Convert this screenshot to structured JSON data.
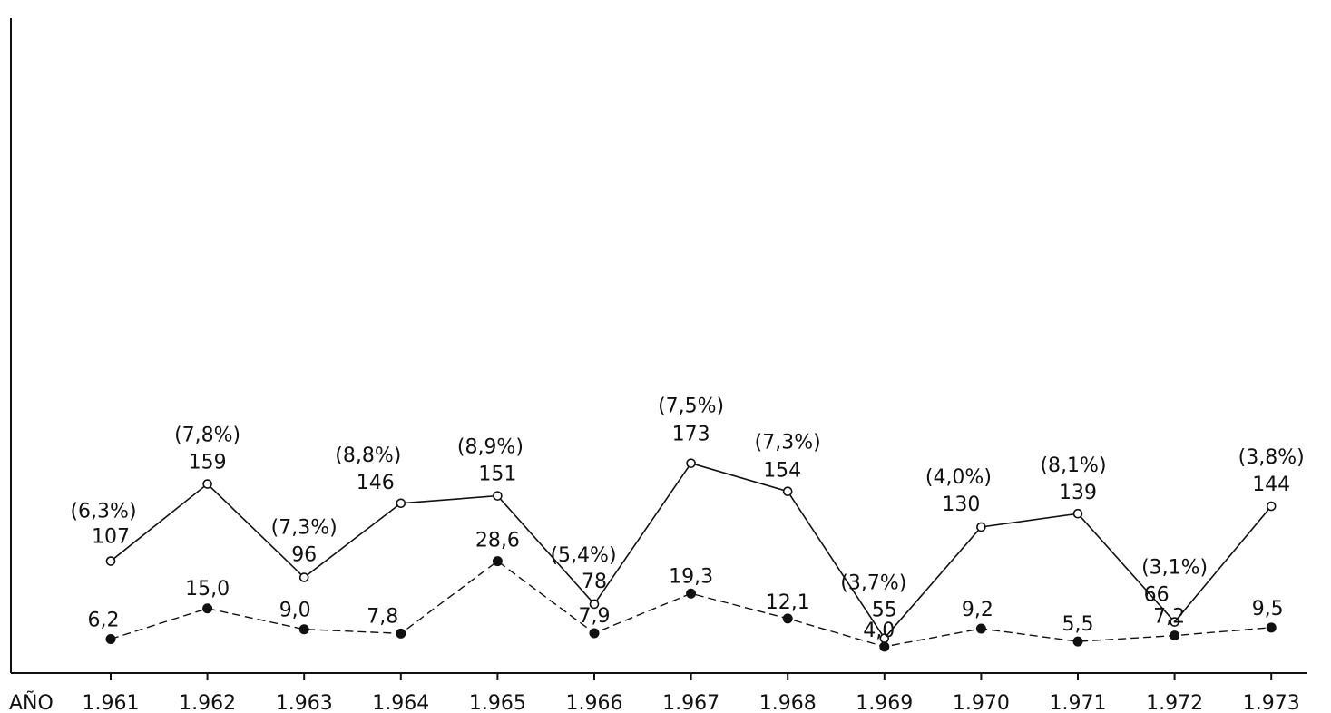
{
  "chart_data": {
    "type": "line",
    "xlabel": "AÑO",
    "categories": [
      "1.961",
      "1.962",
      "1.963",
      "1.964",
      "1.965",
      "1.966",
      "1.967",
      "1.968",
      "1.969",
      "1.970",
      "1.971",
      "1.972",
      "1.973"
    ],
    "series": [
      {
        "line": "solid",
        "marker": "open-circle",
        "values": [
          107,
          159,
          96,
          146,
          151,
          78,
          173,
          154,
          55,
          130,
          139,
          66,
          144
        ],
        "value_labels": [
          "107",
          "159",
          "96",
          "146",
          "151",
          "78",
          "173",
          "154",
          "55",
          "130",
          "139",
          "66",
          "144"
        ],
        "percent_labels": [
          "(6,3%)",
          "(7,8%)",
          "(7,3%)",
          "(8,8%)",
          "(8,9%)",
          "(5,4%)",
          "(7,5%)",
          "(7,3%)",
          "(3,7%)",
          "(4,0%)",
          "(8,1%)",
          "(3,1%)",
          "(3,8%)"
        ]
      },
      {
        "line": "dashed",
        "marker": "filled-circle",
        "values": [
          6.2,
          15.0,
          9.0,
          7.8,
          28.6,
          7.9,
          19.3,
          12.1,
          4.0,
          9.2,
          5.5,
          7.2,
          9.5
        ],
        "value_labels": [
          "6,2",
          "15,0",
          "9,0",
          "7,8",
          "28,6",
          "7,9",
          "19,3",
          "12,1",
          "4,0",
          "9,2",
          "5,5",
          "7,2",
          "9,5"
        ]
      }
    ],
    "grid": false,
    "legend": "none"
  }
}
